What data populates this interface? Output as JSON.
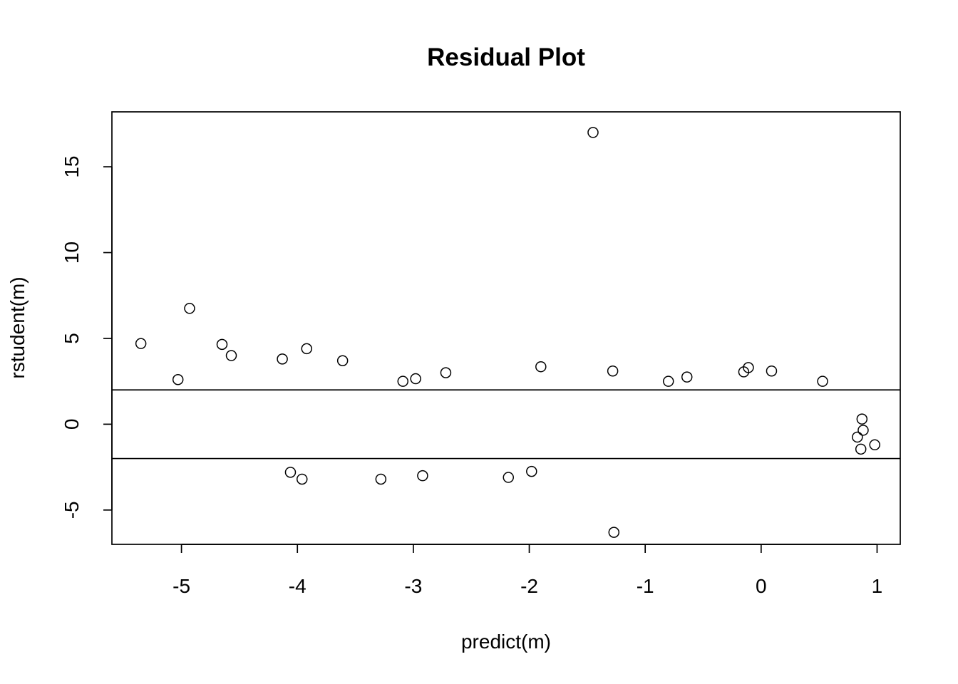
{
  "chart_data": {
    "type": "scatter",
    "title": "Residual Plot",
    "xlabel": "predict(m)",
    "ylabel": "rstudent(m)",
    "xlim": [
      -5.6,
      1.2
    ],
    "ylim": [
      -7,
      18.2
    ],
    "x_ticks": [
      -5,
      -4,
      -3,
      -2,
      -1,
      0,
      1
    ],
    "y_ticks": [
      -5,
      0,
      5,
      10,
      15
    ],
    "x_tick_labels": [
      "-5",
      "-4",
      "-3",
      "-2",
      "-1",
      "0",
      "1"
    ],
    "y_tick_labels": [
      "-5",
      "0",
      "5",
      "10",
      "15"
    ],
    "hlines": [
      2,
      -2
    ],
    "grid": false,
    "legend": "none",
    "series": [
      {
        "points": [
          [
            -5.35,
            4.7
          ],
          [
            -5.03,
            2.6
          ],
          [
            -4.93,
            6.75
          ],
          [
            -4.65,
            4.65
          ],
          [
            -4.57,
            4.0
          ],
          [
            -4.13,
            3.8
          ],
          [
            -3.92,
            4.4
          ],
          [
            -3.61,
            3.7
          ],
          [
            -1.45,
            17.0
          ],
          [
            -1.27,
            -6.3
          ],
          [
            -3.28,
            -3.2
          ],
          [
            -3.96,
            -3.2
          ],
          [
            -4.06,
            -2.8
          ],
          [
            -2.92,
            -3.0
          ],
          [
            -2.18,
            -3.1
          ],
          [
            -1.98,
            -2.75
          ],
          [
            -1.9,
            3.35
          ],
          [
            -1.28,
            3.1
          ],
          [
            -2.72,
            3.0
          ],
          [
            -2.98,
            2.65
          ],
          [
            -3.09,
            2.5
          ],
          [
            -0.15,
            3.05
          ],
          [
            -0.11,
            3.3
          ],
          [
            0.09,
            3.1
          ],
          [
            0.53,
            2.5
          ],
          [
            -0.64,
            2.75
          ],
          [
            -0.8,
            2.5
          ],
          [
            0.87,
            0.3
          ],
          [
            0.98,
            -1.2
          ],
          [
            0.88,
            -0.35
          ],
          [
            0.86,
            -1.45
          ],
          [
            0.83,
            -0.75
          ]
        ]
      }
    ]
  }
}
